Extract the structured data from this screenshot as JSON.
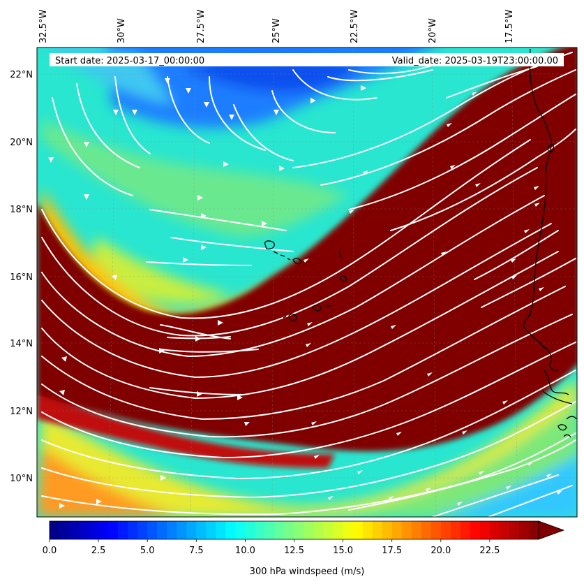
{
  "header": {
    "start_date": "Start date: 2025-03-17_00:00:00",
    "valid_date": "Valid_date: 2025-03-19T23:00:00.00"
  },
  "map": {
    "lon_ticks": [
      "32.5°W",
      "30°W",
      "27.5°W",
      "25°W",
      "22.5°W",
      "20°W",
      "17.5°W"
    ],
    "lat_ticks": [
      "22°N",
      "20°N",
      "18°N",
      "16°N",
      "14°N",
      "12°N",
      "10°N"
    ],
    "field": "300 hPa windspeed",
    "jet_core_color": "#800000",
    "streamline_color": "#ffffff",
    "coastline_color": "#000000"
  },
  "colorbar": {
    "label": "300 hPa windspeed (m/s)",
    "ticks": [
      "0.0",
      "2.5",
      "5.0",
      "7.5",
      "10.0",
      "12.5",
      "15.0",
      "17.5",
      "20.0",
      "22.5"
    ],
    "min": 0,
    "max": 25,
    "extend": "max",
    "colormap": "jet"
  }
}
